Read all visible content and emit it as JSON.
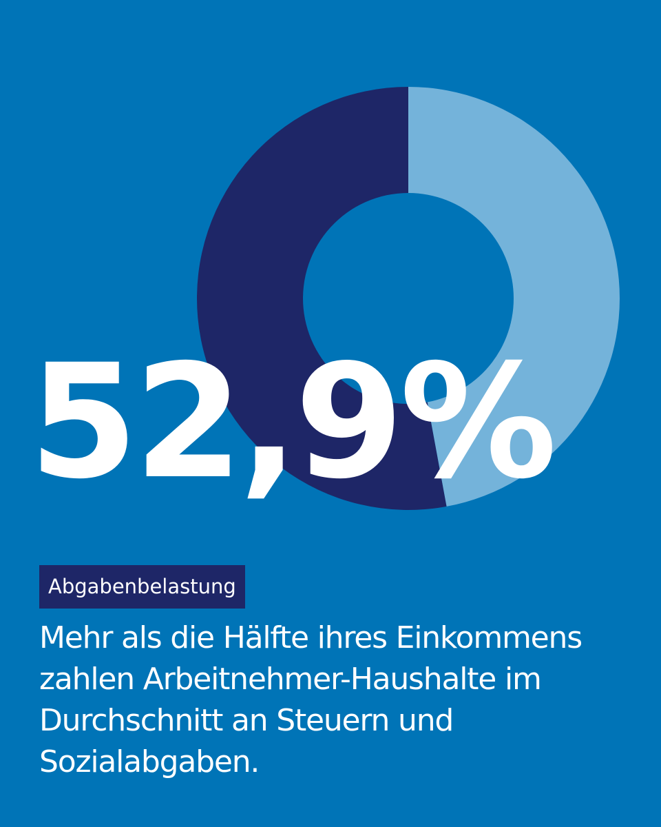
{
  "chart_data": {
    "type": "pie",
    "categories": [
      "",
      ""
    ],
    "values": [
      52.9,
      47.1
    ],
    "colors": [
      "#1e2667",
      "#74b3da"
    ],
    "title": "",
    "value_label": "52,9%"
  },
  "tag": "Abgabenbelastung",
  "description": "Mehr als die Hälfte ihres Einkommens zahlen Arbeitnehmer-Haushalte im Durchschnitt an Steuern und Sozialabgaben.",
  "colors": {
    "background": "#0074b7",
    "dark_segment": "#1e2667",
    "light_segment": "#74b3da",
    "text": "#ffffff"
  }
}
